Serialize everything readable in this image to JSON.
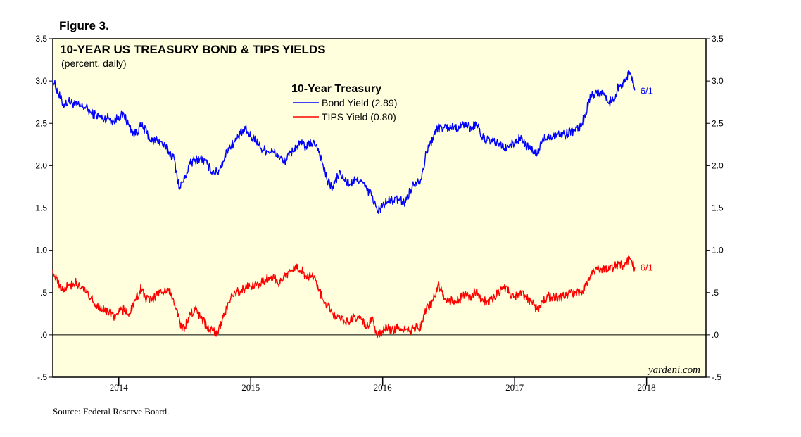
{
  "figure_label": "Figure 3.",
  "source": "Source: Federal Reserve Board.",
  "chart_data": {
    "type": "line",
    "title": "10-YEAR US TREASURY BOND & TIPS YIELDS",
    "subtitle": "(percent, daily)",
    "watermark": "yardeni.com",
    "legend": {
      "title": "10-Year Treasury",
      "placement": "top-center",
      "entries": [
        {
          "label": "Bond Yield (2.89)",
          "color": "#0000ff"
        },
        {
          "label": "TIPS Yield (0.80)",
          "color": "#ff0000"
        }
      ]
    },
    "ylim": [
      -0.5,
      3.5
    ],
    "yticks": [
      {
        "value": 3.5,
        "label": "3.5"
      },
      {
        "value": 3.0,
        "label": "3.0"
      },
      {
        "value": 2.5,
        "label": "2.5"
      },
      {
        "value": 2.0,
        "label": "2.0"
      },
      {
        "value": 1.5,
        "label": "1.5"
      },
      {
        "value": 1.0,
        "label": "1.0"
      },
      {
        "value": 0.5,
        "label": ".5"
      },
      {
        "value": 0.0,
        "label": ".0"
      },
      {
        "value": -0.5,
        "label": "-.5"
      }
    ],
    "xlim": [
      2014.0,
      2018.95
    ],
    "xticks": [
      2014.5,
      2015.5,
      2016.5,
      2017.5,
      2018.5
    ],
    "year_labels": [
      {
        "value": 2014.5,
        "label": "2014"
      },
      {
        "value": 2015.5,
        "label": "2015"
      },
      {
        "value": 2016.5,
        "label": "2016"
      },
      {
        "value": 2017.5,
        "label": "2017"
      },
      {
        "value": 2018.5,
        "label": "2018"
      }
    ],
    "zero_line": true,
    "series": [
      {
        "name": "Bond Yield (2.89)",
        "color": "#0000ff",
        "end_label": "6/1",
        "points": [
          [
            2014.0,
            3.02
          ],
          [
            2014.04,
            2.86
          ],
          [
            2014.08,
            2.72
          ],
          [
            2014.12,
            2.76
          ],
          [
            2014.17,
            2.72
          ],
          [
            2014.21,
            2.7
          ],
          [
            2014.25,
            2.69
          ],
          [
            2014.29,
            2.62
          ],
          [
            2014.33,
            2.6
          ],
          [
            2014.38,
            2.55
          ],
          [
            2014.42,
            2.57
          ],
          [
            2014.46,
            2.52
          ],
          [
            2014.5,
            2.58
          ],
          [
            2014.54,
            2.6
          ],
          [
            2014.58,
            2.46
          ],
          [
            2014.62,
            2.37
          ],
          [
            2014.67,
            2.47
          ],
          [
            2014.71,
            2.4
          ],
          [
            2014.75,
            2.28
          ],
          [
            2014.79,
            2.31
          ],
          [
            2014.83,
            2.26
          ],
          [
            2014.88,
            2.16
          ],
          [
            2014.92,
            2.08
          ],
          [
            2014.96,
            1.72
          ],
          [
            2014.98,
            1.8
          ],
          [
            2015.0,
            1.85
          ],
          [
            2015.04,
            2.02
          ],
          [
            2015.08,
            2.07
          ],
          [
            2015.12,
            2.09
          ],
          [
            2015.17,
            2.02
          ],
          [
            2015.21,
            1.93
          ],
          [
            2015.25,
            1.92
          ],
          [
            2015.29,
            2.05
          ],
          [
            2015.33,
            2.21
          ],
          [
            2015.38,
            2.28
          ],
          [
            2015.42,
            2.37
          ],
          [
            2015.46,
            2.43
          ],
          [
            2015.5,
            2.34
          ],
          [
            2015.54,
            2.31
          ],
          [
            2015.58,
            2.2
          ],
          [
            2015.62,
            2.18
          ],
          [
            2015.67,
            2.16
          ],
          [
            2015.71,
            2.12
          ],
          [
            2015.75,
            2.04
          ],
          [
            2015.79,
            2.12
          ],
          [
            2015.83,
            2.2
          ],
          [
            2015.88,
            2.26
          ],
          [
            2015.92,
            2.22
          ],
          [
            2015.96,
            2.27
          ],
          [
            2016.0,
            2.25
          ],
          [
            2016.04,
            2.05
          ],
          [
            2016.08,
            1.82
          ],
          [
            2016.12,
            1.74
          ],
          [
            2016.17,
            1.91
          ],
          [
            2016.21,
            1.83
          ],
          [
            2016.25,
            1.78
          ],
          [
            2016.29,
            1.82
          ],
          [
            2016.33,
            1.84
          ],
          [
            2016.38,
            1.71
          ],
          [
            2016.42,
            1.65
          ],
          [
            2016.46,
            1.45
          ],
          [
            2016.5,
            1.53
          ],
          [
            2016.54,
            1.58
          ],
          [
            2016.58,
            1.59
          ],
          [
            2016.62,
            1.6
          ],
          [
            2016.67,
            1.56
          ],
          [
            2016.71,
            1.72
          ],
          [
            2016.75,
            1.81
          ],
          [
            2016.79,
            1.84
          ],
          [
            2016.83,
            2.15
          ],
          [
            2016.88,
            2.33
          ],
          [
            2016.92,
            2.45
          ],
          [
            2016.96,
            2.45
          ],
          [
            2017.0,
            2.45
          ],
          [
            2017.04,
            2.46
          ],
          [
            2017.08,
            2.45
          ],
          [
            2017.12,
            2.5
          ],
          [
            2017.17,
            2.44
          ],
          [
            2017.21,
            2.51
          ],
          [
            2017.25,
            2.34
          ],
          [
            2017.29,
            2.3
          ],
          [
            2017.33,
            2.28
          ],
          [
            2017.38,
            2.26
          ],
          [
            2017.42,
            2.2
          ],
          [
            2017.46,
            2.23
          ],
          [
            2017.5,
            2.27
          ],
          [
            2017.54,
            2.33
          ],
          [
            2017.58,
            2.25
          ],
          [
            2017.62,
            2.19
          ],
          [
            2017.67,
            2.13
          ],
          [
            2017.71,
            2.3
          ],
          [
            2017.75,
            2.35
          ],
          [
            2017.79,
            2.35
          ],
          [
            2017.83,
            2.38
          ],
          [
            2017.88,
            2.36
          ],
          [
            2017.92,
            2.41
          ],
          [
            2017.96,
            2.41
          ],
          [
            2018.0,
            2.46
          ],
          [
            2018.04,
            2.63
          ],
          [
            2018.08,
            2.84
          ],
          [
            2018.12,
            2.86
          ],
          [
            2018.17,
            2.87
          ],
          [
            2018.21,
            2.74
          ],
          [
            2018.25,
            2.78
          ],
          [
            2018.29,
            2.95
          ],
          [
            2018.33,
            2.98
          ],
          [
            2018.37,
            3.11
          ],
          [
            2018.39,
            3.05
          ],
          [
            2018.41,
            2.89
          ]
        ]
      },
      {
        "name": "TIPS Yield (0.80)",
        "color": "#ff0000",
        "end_label": "6/1",
        "points": [
          [
            2014.0,
            0.77
          ],
          [
            2014.04,
            0.6
          ],
          [
            2014.08,
            0.55
          ],
          [
            2014.12,
            0.58
          ],
          [
            2014.17,
            0.62
          ],
          [
            2014.21,
            0.55
          ],
          [
            2014.25,
            0.5
          ],
          [
            2014.29,
            0.43
          ],
          [
            2014.33,
            0.36
          ],
          [
            2014.38,
            0.3
          ],
          [
            2014.42,
            0.26
          ],
          [
            2014.46,
            0.22
          ],
          [
            2014.5,
            0.27
          ],
          [
            2014.54,
            0.3
          ],
          [
            2014.58,
            0.25
          ],
          [
            2014.62,
            0.4
          ],
          [
            2014.67,
            0.55
          ],
          [
            2014.71,
            0.42
          ],
          [
            2014.75,
            0.4
          ],
          [
            2014.79,
            0.47
          ],
          [
            2014.83,
            0.5
          ],
          [
            2014.88,
            0.55
          ],
          [
            2014.92,
            0.35
          ],
          [
            2014.96,
            0.18
          ],
          [
            2014.98,
            0.05
          ],
          [
            2015.0,
            0.1
          ],
          [
            2015.04,
            0.25
          ],
          [
            2015.08,
            0.3
          ],
          [
            2015.12,
            0.2
          ],
          [
            2015.17,
            0.1
          ],
          [
            2015.21,
            0.05
          ],
          [
            2015.25,
            0.02
          ],
          [
            2015.29,
            0.2
          ],
          [
            2015.33,
            0.38
          ],
          [
            2015.38,
            0.5
          ],
          [
            2015.42,
            0.52
          ],
          [
            2015.46,
            0.55
          ],
          [
            2015.5,
            0.58
          ],
          [
            2015.54,
            0.6
          ],
          [
            2015.58,
            0.62
          ],
          [
            2015.62,
            0.67
          ],
          [
            2015.67,
            0.7
          ],
          [
            2015.71,
            0.6
          ],
          [
            2015.75,
            0.7
          ],
          [
            2015.79,
            0.74
          ],
          [
            2015.83,
            0.8
          ],
          [
            2015.88,
            0.77
          ],
          [
            2015.92,
            0.7
          ],
          [
            2015.96,
            0.7
          ],
          [
            2016.0,
            0.6
          ],
          [
            2016.04,
            0.45
          ],
          [
            2016.08,
            0.35
          ],
          [
            2016.12,
            0.25
          ],
          [
            2016.17,
            0.2
          ],
          [
            2016.21,
            0.15
          ],
          [
            2016.25,
            0.15
          ],
          [
            2016.29,
            0.22
          ],
          [
            2016.33,
            0.2
          ],
          [
            2016.38,
            0.1
          ],
          [
            2016.42,
            0.2
          ],
          [
            2016.46,
            -0.03
          ],
          [
            2016.5,
            0.05
          ],
          [
            2016.54,
            0.08
          ],
          [
            2016.58,
            0.06
          ],
          [
            2016.62,
            0.1
          ],
          [
            2016.67,
            0.05
          ],
          [
            2016.71,
            0.05
          ],
          [
            2016.75,
            0.08
          ],
          [
            2016.79,
            0.1
          ],
          [
            2016.83,
            0.3
          ],
          [
            2016.88,
            0.4
          ],
          [
            2016.92,
            0.6
          ],
          [
            2016.96,
            0.48
          ],
          [
            2017.0,
            0.4
          ],
          [
            2017.04,
            0.4
          ],
          [
            2017.08,
            0.42
          ],
          [
            2017.12,
            0.47
          ],
          [
            2017.17,
            0.45
          ],
          [
            2017.21,
            0.53
          ],
          [
            2017.25,
            0.4
          ],
          [
            2017.29,
            0.4
          ],
          [
            2017.33,
            0.42
          ],
          [
            2017.38,
            0.5
          ],
          [
            2017.42,
            0.55
          ],
          [
            2017.46,
            0.5
          ],
          [
            2017.5,
            0.45
          ],
          [
            2017.54,
            0.5
          ],
          [
            2017.58,
            0.45
          ],
          [
            2017.62,
            0.4
          ],
          [
            2017.67,
            0.3
          ],
          [
            2017.71,
            0.4
          ],
          [
            2017.75,
            0.45
          ],
          [
            2017.79,
            0.45
          ],
          [
            2017.83,
            0.45
          ],
          [
            2017.88,
            0.45
          ],
          [
            2017.92,
            0.5
          ],
          [
            2017.96,
            0.5
          ],
          [
            2018.0,
            0.5
          ],
          [
            2018.04,
            0.57
          ],
          [
            2018.08,
            0.7
          ],
          [
            2018.12,
            0.78
          ],
          [
            2018.17,
            0.77
          ],
          [
            2018.21,
            0.76
          ],
          [
            2018.25,
            0.8
          ],
          [
            2018.29,
            0.84
          ],
          [
            2018.33,
            0.8
          ],
          [
            2018.37,
            0.92
          ],
          [
            2018.39,
            0.85
          ],
          [
            2018.41,
            0.8
          ]
        ]
      }
    ]
  }
}
